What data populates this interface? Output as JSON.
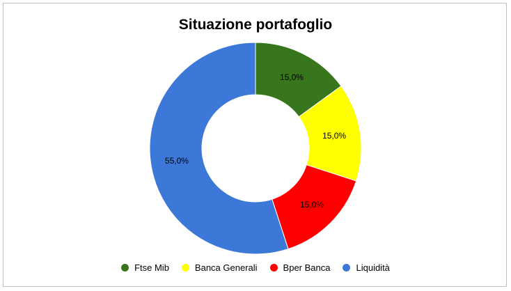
{
  "chart_data": {
    "type": "pie",
    "title": "Situazione portafoglio",
    "categories": [
      "Ftse Mib",
      "Banca Generali",
      "Bper Banca",
      "Liquidità"
    ],
    "values": [
      15.0,
      15.0,
      15.0,
      55.0
    ],
    "data_labels": [
      "15,0%",
      "15,0%",
      "15,0%",
      "55,0%"
    ],
    "colors": [
      "#38761d",
      "#ffff00",
      "#ff0000",
      "#3c78d8"
    ],
    "donut": true,
    "legend_position": "bottom"
  }
}
